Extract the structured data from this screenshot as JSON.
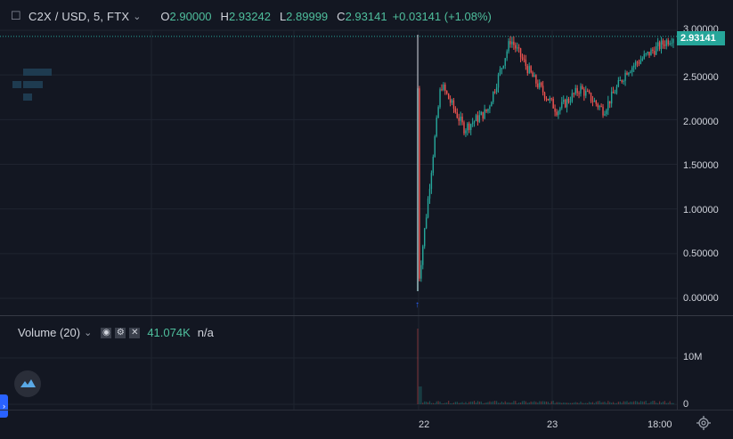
{
  "header": {
    "symbol": "C2X / USD, 5, FTX",
    "open_label": "O",
    "open": "2.90000",
    "high_label": "H",
    "high": "2.93242",
    "low_label": "L",
    "low": "2.89999",
    "close_label": "C",
    "close": "2.93141",
    "change": "+0.03141 (+1.08%)"
  },
  "price_axis": {
    "ticks": [
      "3.00000",
      "2.50000",
      "2.00000",
      "1.50000",
      "1.00000",
      "0.50000",
      "0.00000"
    ],
    "current_price": "2.93141"
  },
  "volume": {
    "label": "Volume (20)",
    "value": "41.074K",
    "na": "n/a",
    "ticks": [
      "10M",
      "0"
    ]
  },
  "time_axis": {
    "labels": [
      "22",
      "23",
      "18:00"
    ]
  },
  "colors": {
    "up": "#26a69a",
    "down": "#ef5350",
    "background": "#131722",
    "accent": "#2962ff"
  },
  "chart_data": {
    "type": "candlestick",
    "series_name": "C2X / USD",
    "interval": "5",
    "exchange": "FTX",
    "ylim": [
      0,
      3
    ],
    "last_close": 2.93141,
    "x_labels": [
      "22",
      "23",
      "18:00"
    ],
    "approx_path": [
      {
        "t": "22 open",
        "price": 0.08
      },
      {
        "t": "22 early",
        "price": 2.4
      },
      {
        "t": "22 early",
        "price": 1.9
      },
      {
        "t": "22 mid",
        "price": 2.1
      },
      {
        "t": "22 late",
        "price": 2.9
      },
      {
        "t": "22 late",
        "price": 2.45
      },
      {
        "t": "23 early",
        "price": 2.1
      },
      {
        "t": "23",
        "price": 2.35
      },
      {
        "t": "23 mid",
        "price": 2.1
      },
      {
        "t": "23 late",
        "price": 2.55
      },
      {
        "t": "18:00",
        "price": 2.75
      },
      {
        "t": "last",
        "price": 2.93
      }
    ],
    "volume": {
      "ylim_label": "10M",
      "last_value": "41.074K",
      "spike_at": "22 open"
    }
  }
}
